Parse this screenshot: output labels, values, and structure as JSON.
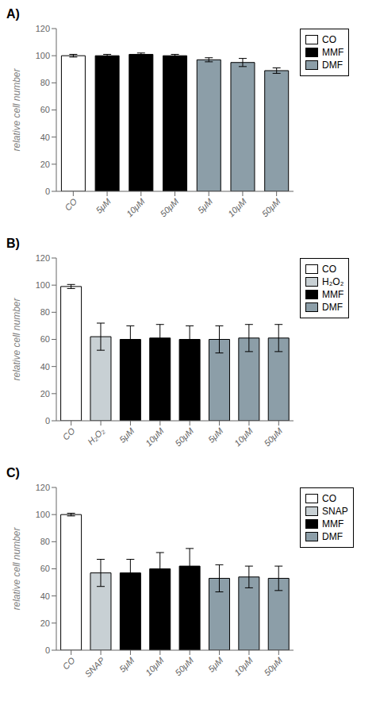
{
  "chart_data": [
    {
      "type": "bar",
      "title": "A)",
      "ylabel": "relative cell number",
      "categories": [
        "CO",
        "5μM",
        "10μM",
        "50μM",
        "5μM",
        "10μM",
        "50μM"
      ],
      "series": [
        {
          "name": "CO",
          "color": "white",
          "values": [
            100,
            null,
            null,
            null,
            null,
            null,
            null
          ],
          "errors": [
            1,
            null,
            null,
            null,
            null,
            null,
            null
          ]
        },
        {
          "name": "MMF",
          "color": "black",
          "values": [
            null,
            100,
            101,
            100,
            null,
            null,
            null
          ],
          "errors": [
            null,
            1,
            1,
            1,
            null,
            null,
            null
          ]
        },
        {
          "name": "DMF",
          "color": "#8c9ea8",
          "values": [
            null,
            null,
            null,
            null,
            97,
            95,
            89
          ],
          "errors": [
            null,
            null,
            null,
            null,
            1.5,
            3,
            2
          ]
        }
      ],
      "ylim": [
        0,
        120
      ],
      "yticks": [
        0,
        20,
        40,
        60,
        80,
        100,
        120
      ],
      "grid": false,
      "legend": "upper right"
    },
    {
      "type": "bar",
      "title": "B)",
      "ylabel": "relative cell number",
      "categories": [
        "CO",
        "H₂O₂",
        "5μM",
        "10μM",
        "50μM",
        "5μM",
        "10μM",
        "50μM"
      ],
      "series": [
        {
          "name": "CO",
          "color": "white",
          "values": [
            99,
            null,
            null,
            null,
            null,
            null,
            null,
            null
          ],
          "errors": [
            1.5,
            null,
            null,
            null,
            null,
            null,
            null,
            null
          ]
        },
        {
          "name": "H₂O₂",
          "color": "#c8d0d4",
          "values": [
            null,
            62,
            null,
            null,
            null,
            null,
            null,
            null
          ],
          "errors": [
            null,
            10,
            null,
            null,
            null,
            null,
            null,
            null
          ]
        },
        {
          "name": "MMF",
          "color": "black",
          "values": [
            null,
            null,
            60,
            61,
            60,
            null,
            null,
            null
          ],
          "errors": [
            null,
            null,
            10,
            10,
            10,
            null,
            null,
            null
          ]
        },
        {
          "name": "DMF",
          "color": "#8c9ea8",
          "values": [
            null,
            null,
            null,
            null,
            null,
            60,
            61,
            61
          ],
          "errors": [
            null,
            null,
            null,
            null,
            null,
            10,
            10,
            10
          ]
        }
      ],
      "ylim": [
        0,
        120
      ],
      "yticks": [
        0,
        20,
        40,
        60,
        80,
        100,
        120
      ],
      "grid": false,
      "legend": "upper right"
    },
    {
      "type": "bar",
      "title": "C)",
      "ylabel": "relative cell number",
      "categories": [
        "CO",
        "SNAP",
        "5μM",
        "10μM",
        "50μM",
        "5μM",
        "10μM",
        "50μM"
      ],
      "series": [
        {
          "name": "CO",
          "color": "white",
          "values": [
            100,
            null,
            null,
            null,
            null,
            null,
            null,
            null
          ],
          "errors": [
            1,
            null,
            null,
            null,
            null,
            null,
            null,
            null
          ]
        },
        {
          "name": "SNAP",
          "color": "#c8d0d4",
          "values": [
            null,
            57,
            null,
            null,
            null,
            null,
            null,
            null
          ],
          "errors": [
            null,
            10,
            null,
            null,
            null,
            null,
            null,
            null
          ]
        },
        {
          "name": "MMF",
          "color": "black",
          "values": [
            null,
            null,
            57,
            60,
            62,
            null,
            null,
            null
          ],
          "errors": [
            null,
            null,
            10,
            12,
            13,
            null,
            null,
            null
          ]
        },
        {
          "name": "DMF",
          "color": "#8c9ea8",
          "values": [
            null,
            null,
            null,
            null,
            null,
            53,
            54,
            53
          ],
          "errors": [
            null,
            null,
            null,
            null,
            null,
            10,
            8,
            9
          ]
        }
      ],
      "ylim": [
        0,
        120
      ],
      "yticks": [
        0,
        20,
        40,
        60,
        80,
        100,
        120
      ],
      "grid": false,
      "legend": "upper right"
    }
  ]
}
